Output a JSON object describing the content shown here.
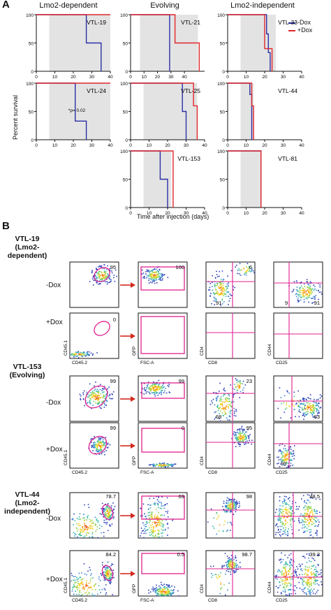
{
  "panel_a": {
    "letter": "A",
    "column_titles": [
      "Lmo2-dependent",
      "Evolving",
      "Lmo2-independent"
    ],
    "y_axis_label": "Percent survival",
    "x_axis_label": "Time after injection (days)",
    "legend": [
      {
        "label": "-Dox",
        "color": "#2b2fa6"
      },
      {
        "label": "+Dox",
        "color": "#e0262c"
      }
    ],
    "y_ticks": [
      "0",
      "50",
      "100"
    ],
    "x_ticks": [
      "0",
      "10",
      "20",
      "30",
      "40"
    ],
    "pvalue_label": "*p= 0.02"
  },
  "chart_data": [
    {
      "type": "line",
      "title": "VTL-19",
      "xlim": [
        0,
        40
      ],
      "ylim": [
        0,
        100
      ],
      "shade": [
        7,
        40
      ],
      "series": [
        {
          "name": "-Dox",
          "color": "#2b2fa6",
          "x": [
            0,
            27,
            27,
            35,
            35
          ],
          "y": [
            100,
            100,
            50,
            50,
            0
          ]
        },
        {
          "name": "+Dox",
          "color": "#e0262c",
          "x": [
            0,
            40
          ],
          "y": [
            100,
            100
          ]
        }
      ]
    },
    {
      "type": "line",
      "title": "VTL-21",
      "xlim": [
        0,
        55
      ],
      "ylim": [
        0,
        100
      ],
      "shade": [
        7,
        50
      ],
      "series": [
        {
          "name": "-Dox",
          "color": "#2b2fa6",
          "x": [
            0,
            29,
            29,
            29
          ],
          "y": [
            100,
            100,
            0,
            0
          ]
        },
        {
          "name": "+Dox",
          "color": "#e0262c",
          "x": [
            0,
            33,
            33,
            51,
            51
          ],
          "y": [
            100,
            100,
            50,
            50,
            0
          ]
        }
      ]
    },
    {
      "type": "line",
      "title": "VTL-33",
      "xlim": [
        0,
        40
      ],
      "ylim": [
        0,
        100
      ],
      "shade": [
        7,
        26
      ],
      "series": [
        {
          "name": "-Dox",
          "color": "#2b2fa6",
          "x": [
            0,
            21,
            21,
            22,
            22,
            23,
            23
          ],
          "y": [
            100,
            100,
            66,
            66,
            33,
            33,
            0
          ]
        },
        {
          "name": "+Dox",
          "color": "#e0262c",
          "x": [
            0,
            20,
            20,
            24,
            24
          ],
          "y": [
            100,
            100,
            40,
            40,
            0
          ]
        }
      ]
    },
    {
      "type": "line",
      "title": "VTL-24",
      "xlim": [
        0,
        40
      ],
      "ylim": [
        0,
        100
      ],
      "shade": [
        7,
        40
      ],
      "series": [
        {
          "name": "-Dox",
          "color": "#2b2fa6",
          "x": [
            0,
            21,
            21,
            27,
            27
          ],
          "y": [
            100,
            100,
            33,
            33,
            0
          ]
        },
        {
          "name": "+Dox",
          "color": "#e0262c",
          "x": [
            0,
            40
          ],
          "y": [
            100,
            100
          ]
        }
      ]
    },
    {
      "type": "line",
      "title": "VTL-25",
      "xlim": [
        0,
        40
      ],
      "ylim": [
        0,
        100
      ],
      "shade": [
        7,
        36
      ],
      "series": [
        {
          "name": "-Dox",
          "color": "#2b2fa6",
          "x": [
            0,
            28,
            28,
            30,
            30
          ],
          "y": [
            100,
            100,
            50,
            50,
            0
          ]
        },
        {
          "name": "+Dox",
          "color": "#e0262c",
          "x": [
            0,
            34,
            34,
            36,
            36
          ],
          "y": [
            100,
            100,
            60,
            60,
            0
          ]
        }
      ]
    },
    {
      "type": "line",
      "title": "VTL-44",
      "xlim": [
        0,
        40
      ],
      "ylim": [
        0,
        100
      ],
      "shade": [
        7,
        14
      ],
      "series": [
        {
          "name": "-Dox",
          "color": "#2b2fa6",
          "x": [
            0,
            12,
            12,
            13,
            13
          ],
          "y": [
            100,
            100,
            80,
            80,
            0
          ]
        },
        {
          "name": "+Dox",
          "color": "#e0262c",
          "x": [
            0,
            13,
            13,
            14,
            14
          ],
          "y": [
            100,
            100,
            60,
            60,
            0
          ]
        }
      ]
    },
    {
      "type": "line",
      "title": "VTL-153",
      "xlim": [
        0,
        40
      ],
      "ylim": [
        0,
        100
      ],
      "shade": [
        7,
        22
      ],
      "series": [
        {
          "name": "-Dox",
          "color": "#2b2fa6",
          "x": [
            0,
            16,
            16,
            20,
            20
          ],
          "y": [
            100,
            100,
            50,
            50,
            0
          ]
        },
        {
          "name": "+Dox",
          "color": "#e0262c",
          "x": [
            0,
            23,
            23
          ],
          "y": [
            100,
            100,
            0
          ]
        }
      ]
    },
    {
      "type": "line",
      "title": "VTL-81",
      "xlim": [
        0,
        40
      ],
      "ylim": [
        0,
        100
      ],
      "shade": [
        7,
        18
      ],
      "series": [
        {
          "name": "-Dox",
          "color": "#2b2fa6",
          "x": [
            0,
            18,
            18
          ],
          "y": [
            100,
            100,
            0
          ]
        },
        {
          "name": "+Dox",
          "color": "#e0262c",
          "x": [
            0,
            18,
            18
          ],
          "y": [
            100,
            100,
            0
          ]
        }
      ]
    }
  ],
  "panel_b": {
    "letter": "B",
    "groups": [
      {
        "title_lines": [
          "VTL-19",
          "(Lmo2-",
          "dependent)"
        ],
        "rows": [
          {
            "dox": "-Dox",
            "values": [
              "95",
              "100",
              "6",
              "91",
              "9",
              "91"
            ]
          },
          {
            "dox": "+Dox",
            "values": [
              "0",
              "",
              "",
              "",
              "",
              ""
            ]
          }
        ]
      },
      {
        "title_lines": [
          "VTL-153",
          "(Evolving)"
        ],
        "rows": [
          {
            "dox": "-Dox",
            "values": [
              "99",
              "99",
              "23",
              "68",
              "",
              "83"
            ]
          },
          {
            "dox": "+Dox",
            "values": [
              "99",
              "0",
              "95",
              "",
              "99",
              ""
            ]
          }
        ]
      },
      {
        "title_lines": [
          "VTL-44",
          "(Lmo2-",
          "independent)"
        ],
        "rows": [
          {
            "dox": "-Dox",
            "values": [
              "78.7",
              "69",
              "98",
              "",
              "",
              "48.5"
            ]
          },
          {
            "dox": "+Dox",
            "values": [
              "84.2",
              "0.5",
              "98.7",
              "",
              "",
              "39.3"
            ]
          }
        ]
      }
    ],
    "axis_labels": [
      {
        "y": "CD45.1",
        "x": "CD45.2"
      },
      {
        "y": "GFP",
        "x": "FSC-A"
      },
      {
        "y": "CD4",
        "x": "CD8"
      },
      {
        "y": "CD44",
        "x": "CD25"
      }
    ],
    "gate_color": "#e0208f",
    "arrow_color": "#d42a1f"
  }
}
